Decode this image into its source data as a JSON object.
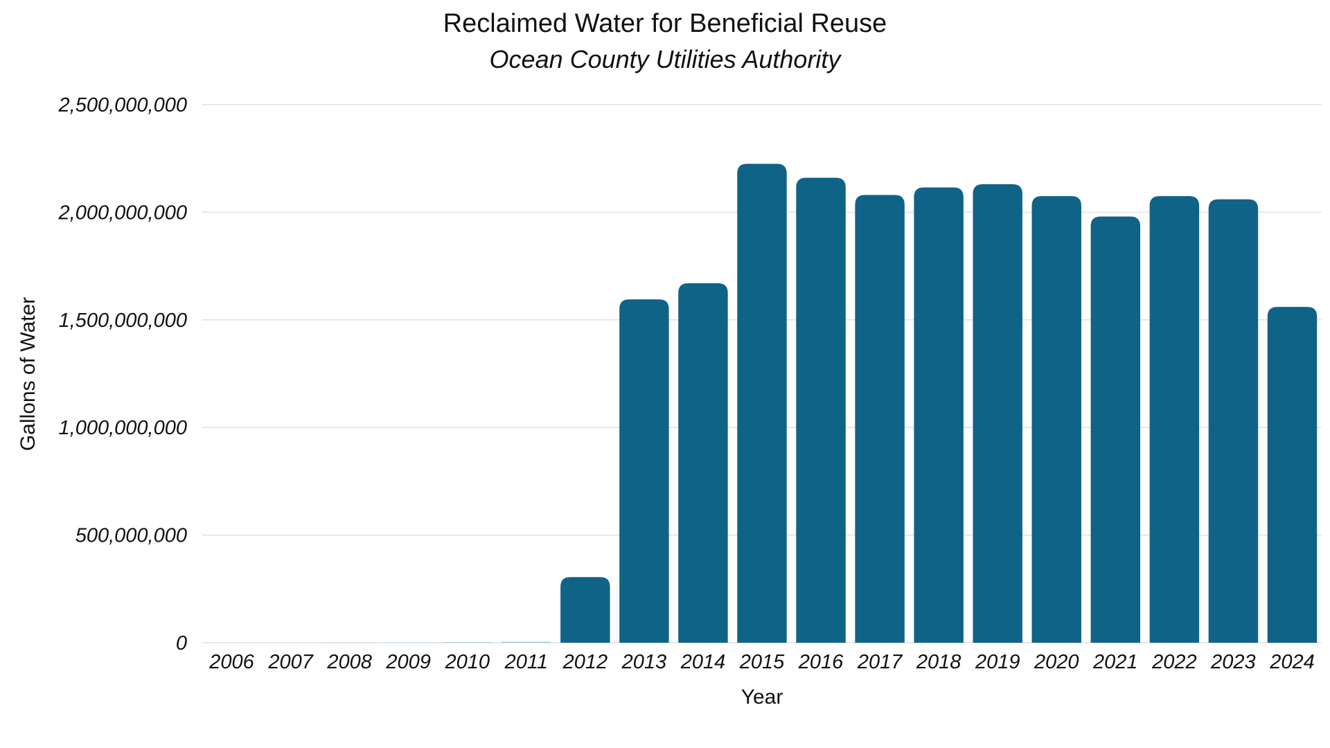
{
  "chart_data": {
    "type": "bar",
    "title": "Reclaimed Water for Beneficial Reuse",
    "subtitle": "Ocean County Utilities Authority",
    "xlabel": "Year",
    "ylabel": "Gallons of Water",
    "ylim": [
      0,
      2500000000
    ],
    "yticks": [
      0,
      500000000,
      1000000000,
      1500000000,
      2000000000,
      2500000000
    ],
    "ytick_labels": [
      "0",
      "500,000,000",
      "1,000,000,000",
      "1,500,000,000",
      "2,000,000,000",
      "2,500,000,000"
    ],
    "categories": [
      "2006",
      "2007",
      "2008",
      "2009",
      "2010",
      "2011",
      "2012",
      "2013",
      "2014",
      "2015",
      "2016",
      "2017",
      "2018",
      "2019",
      "2020",
      "2021",
      "2022",
      "2023",
      "2024"
    ],
    "values": [
      0,
      0,
      1000000,
      1500000,
      3000000,
      5000000,
      305000000,
      1595000000,
      1670000000,
      2225000000,
      2160000000,
      2080000000,
      2115000000,
      2130000000,
      2075000000,
      1980000000,
      2075000000,
      2060000000,
      1560000000
    ],
    "grid": true,
    "legend": "none",
    "colors": {
      "bar": "#0f6387",
      "bar_small": "#9ccbe2",
      "grid": "#dde1e4"
    }
  }
}
